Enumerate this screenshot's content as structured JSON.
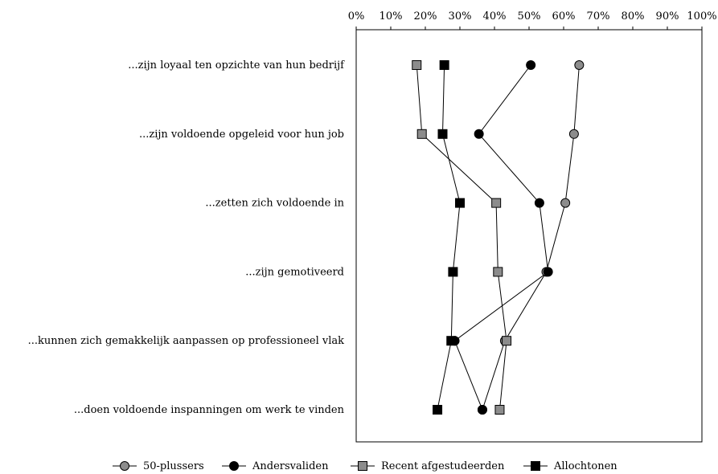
{
  "chart_data": {
    "type": "line",
    "orientation": "horizontal",
    "categories": [
      "...zijn loyaal ten opzichte van hun bedrijf",
      "...zijn voldoende opgeleid voor hun job",
      "...zetten zich voldoende in",
      "...zijn gemotiveerd",
      "...kunnen zich gemakkelijk aanpassen op professioneel vlak",
      "...doen voldoende inspanningen om werk te vinden"
    ],
    "xlim": [
      0,
      100
    ],
    "x_ticks": [
      "0%",
      "10%",
      "20%",
      "30%",
      "40%",
      "50%",
      "60%",
      "70%",
      "80%",
      "90%",
      "100%"
    ],
    "x_tick_values": [
      0,
      10,
      20,
      30,
      40,
      50,
      60,
      70,
      80,
      90,
      100
    ],
    "axis_position": "top",
    "grid": false,
    "legend_position": "bottom",
    "series": [
      {
        "name": "50-plussers",
        "marker": "circle",
        "color": "#8c8c8c",
        "values": [
          64.5,
          63,
          60.5,
          55,
          43,
          36.5
        ]
      },
      {
        "name": "Andersvaliden",
        "marker": "circle",
        "color": "#000000",
        "values": [
          50.5,
          35.5,
          53,
          55.5,
          28.5,
          36.5
        ]
      },
      {
        "name": "Recent afgestudeerden",
        "marker": "square",
        "color": "#8c8c8c",
        "values": [
          17.5,
          19,
          40.5,
          41,
          43.5,
          41.5
        ]
      },
      {
        "name": "Allochtonen",
        "marker": "square",
        "color": "#000000",
        "values": [
          25.5,
          25,
          30,
          28,
          27.5,
          23.5
        ]
      }
    ]
  }
}
